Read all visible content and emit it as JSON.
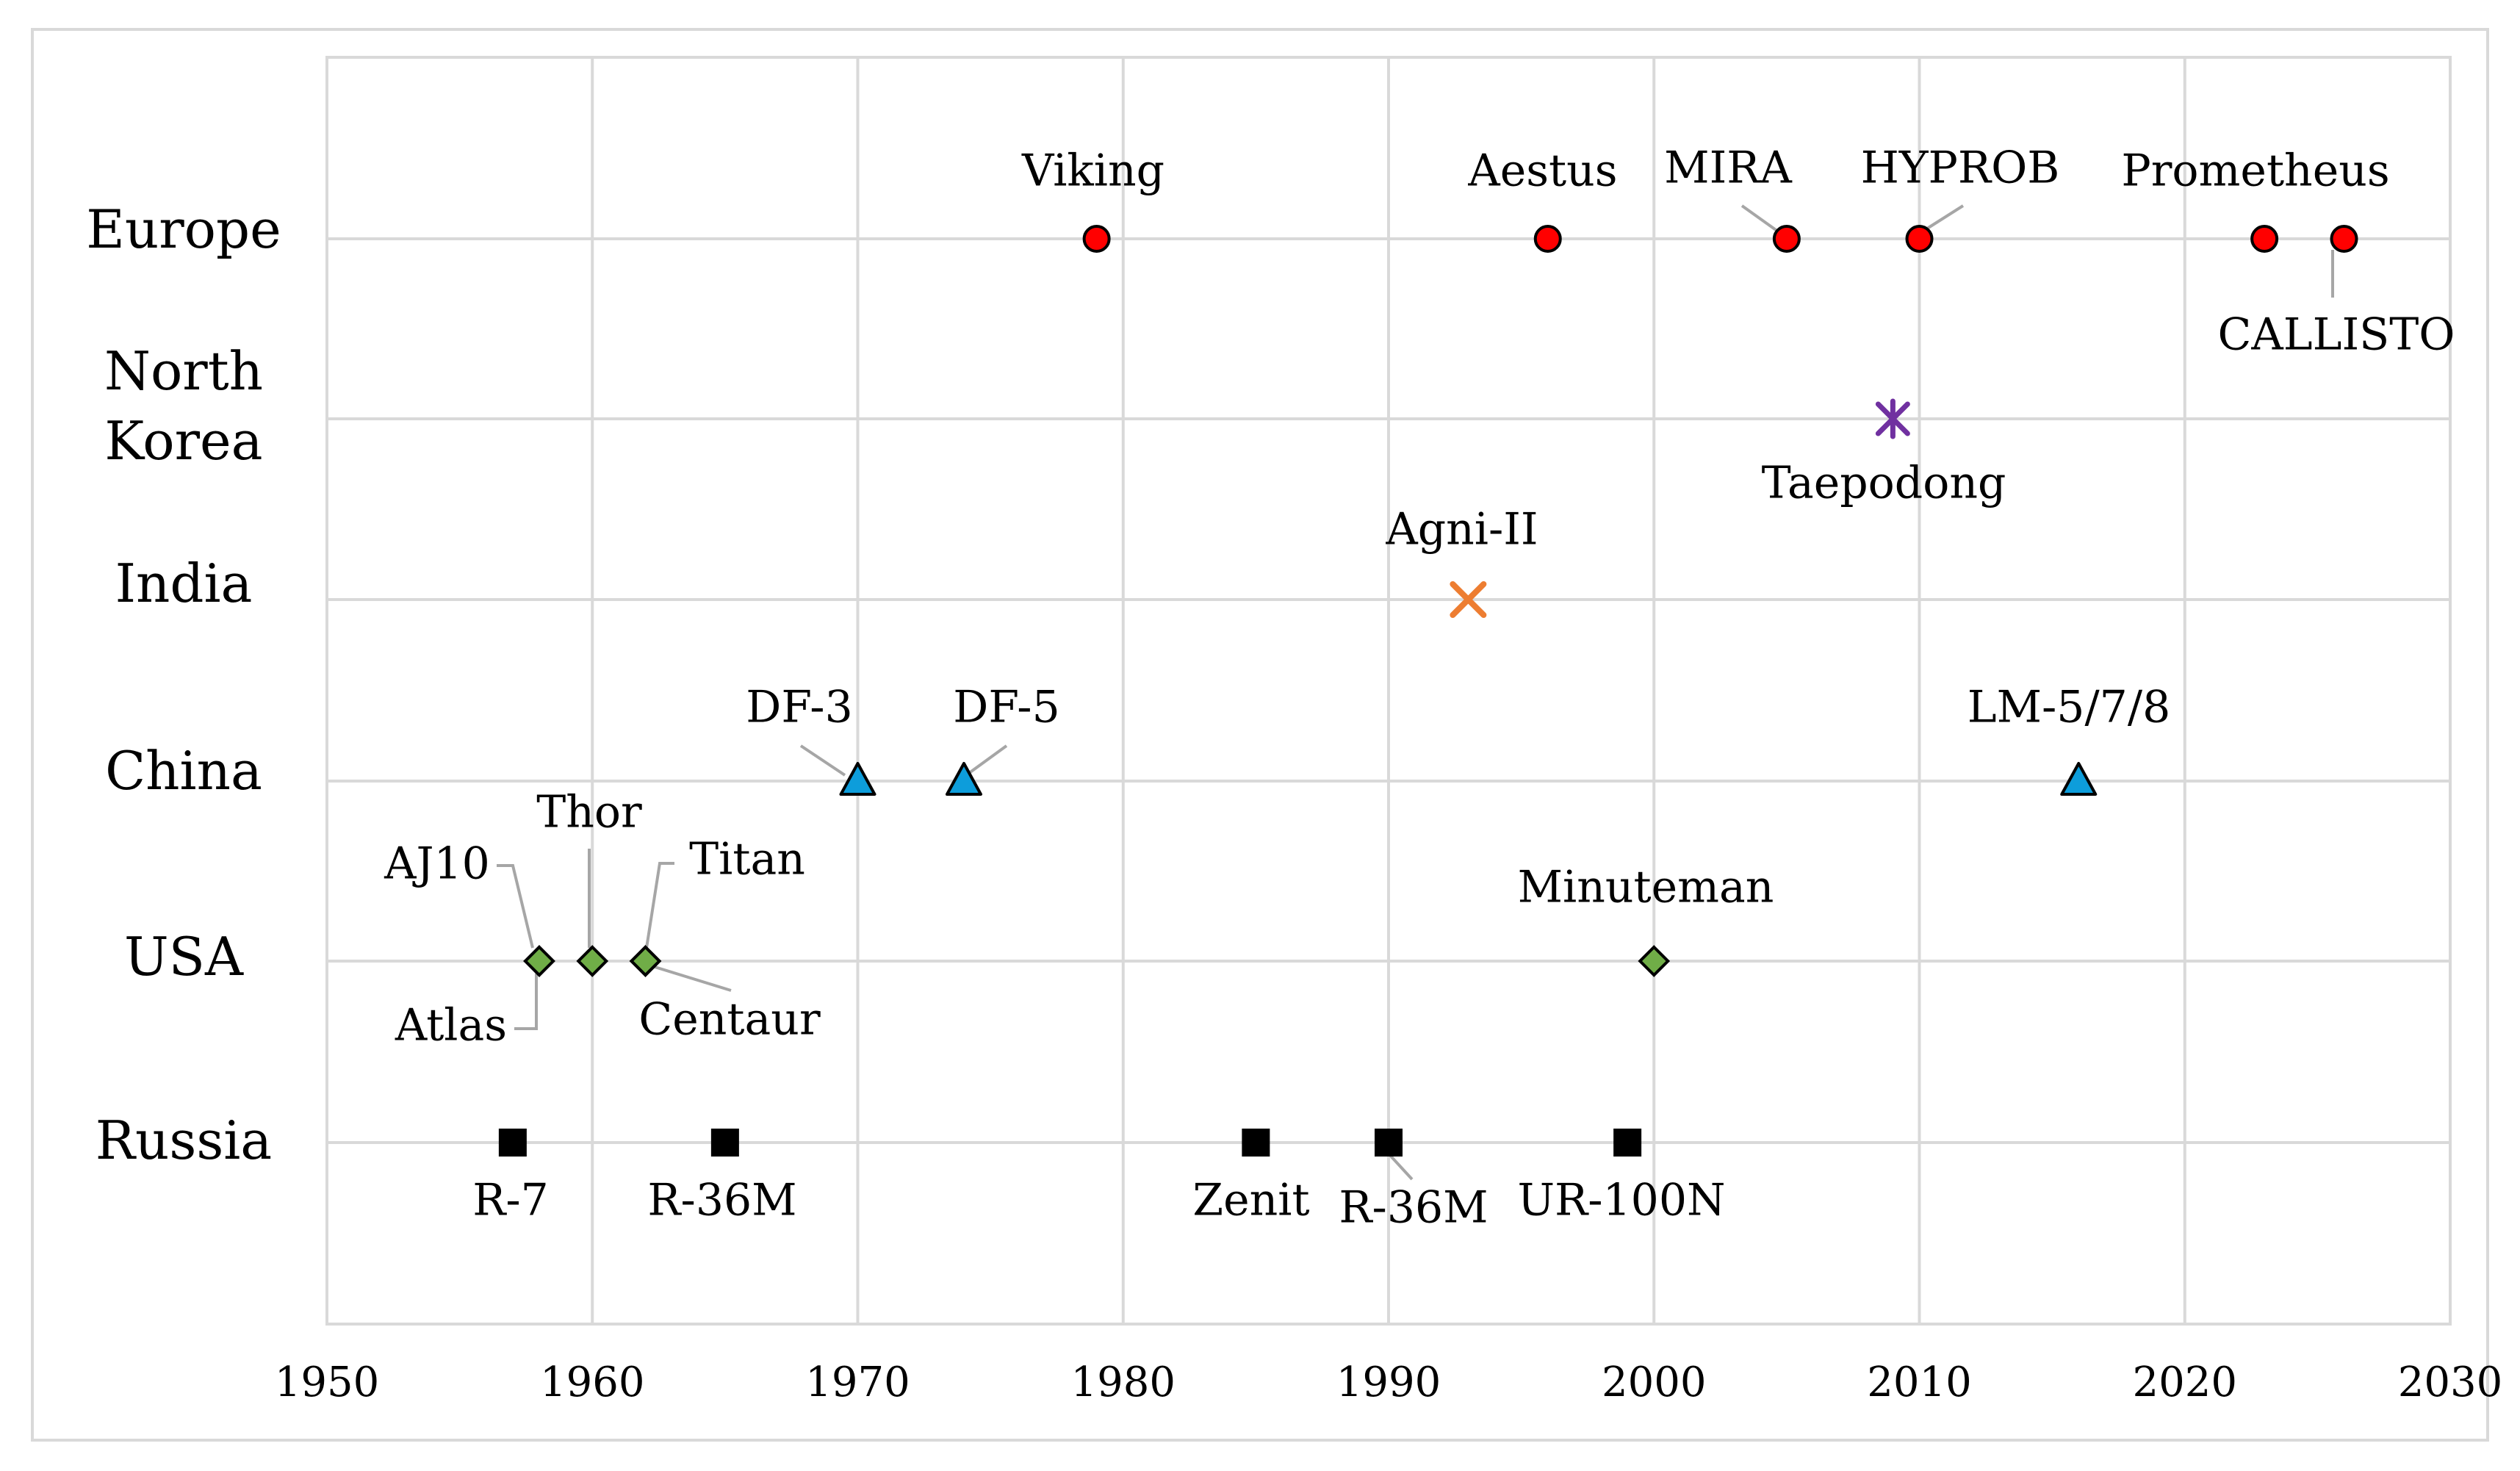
{
  "chart_data": {
    "type": "scatter",
    "title": "",
    "xlabel": "",
    "ylabel": "",
    "xlim": [
      1950,
      2030
    ],
    "xticks": [
      1950,
      1960,
      1970,
      1980,
      1990,
      2000,
      2010,
      2020,
      2030
    ],
    "grid": true,
    "legend": "none",
    "categories": [
      "Russia",
      "USA",
      "China",
      "India",
      "North Korea",
      "Europe"
    ],
    "colors": {
      "Europe": "#ff0000",
      "North Korea": "#7030a0",
      "India": "#ed7d31",
      "China": "#0d9ddb",
      "USA": "#70ad47",
      "Russia": "#000000",
      "grid": "#d9d9d9",
      "leader": "#a6a6a6"
    },
    "series": [
      {
        "name": "Russia",
        "marker": "square",
        "points": [
          {
            "x": 1957,
            "label": "R-7"
          },
          {
            "x": 1965,
            "label": "R-36M"
          },
          {
            "x": 1985,
            "label": "Zenit"
          },
          {
            "x": 1990,
            "label": "R-36M"
          },
          {
            "x": 1999,
            "label": "UR-100N"
          }
        ]
      },
      {
        "name": "USA",
        "marker": "diamond",
        "points": [
          {
            "x": 1958,
            "label": "AJ10"
          },
          {
            "x": 1958,
            "label": "Atlas"
          },
          {
            "x": 1960,
            "label": "Thor"
          },
          {
            "x": 1962,
            "label": "Titan"
          },
          {
            "x": 1962,
            "label": "Centaur"
          },
          {
            "x": 2000,
            "label": "Minuteman"
          }
        ]
      },
      {
        "name": "China",
        "marker": "triangle",
        "points": [
          {
            "x": 1970,
            "label": "DF-3"
          },
          {
            "x": 1974,
            "label": "DF-5"
          },
          {
            "x": 2016,
            "label": "LM-5/7/8"
          }
        ]
      },
      {
        "name": "India",
        "marker": "x",
        "points": [
          {
            "x": 1993,
            "label": "Agni-II"
          }
        ]
      },
      {
        "name": "North Korea",
        "marker": "star",
        "points": [
          {
            "x": 2009,
            "label": "Taepodong"
          }
        ]
      },
      {
        "name": "Europe",
        "marker": "circle",
        "points": [
          {
            "x": 1979,
            "label": "Viking"
          },
          {
            "x": 1996,
            "label": "Aestus"
          },
          {
            "x": 2005,
            "label": "MIRA"
          },
          {
            "x": 2010,
            "label": "HYPROB"
          },
          {
            "x": 2023,
            "label": "Prometheus"
          },
          {
            "x": 2026,
            "label": "CALLISTO"
          }
        ]
      }
    ]
  }
}
